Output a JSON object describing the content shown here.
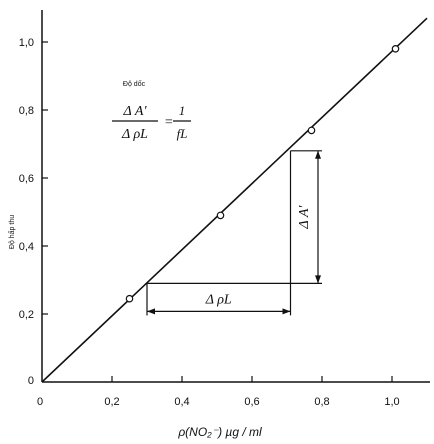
{
  "chart_data": {
    "type": "scatter",
    "xlabel": "ρ(NO₂⁻) µg / ml",
    "ylabel": "Độ hấp thu",
    "xlim": [
      0,
      1.1
    ],
    "ylim": [
      0,
      1.1
    ],
    "x_ticks": [
      "0",
      "0,2",
      "0,4",
      "0,6",
      "0,8",
      "1,0"
    ],
    "y_ticks": [
      "0",
      "0,2",
      "0,4",
      "0,6",
      "0,8",
      "1,0"
    ],
    "grid": false,
    "series": [
      {
        "points": [
          {
            "x": 0.25,
            "y": 0.245
          },
          {
            "x": 0.51,
            "y": 0.49
          },
          {
            "x": 0.77,
            "y": 0.74
          },
          {
            "x": 1.01,
            "y": 0.98
          }
        ],
        "fit_line": {
          "x": [
            0,
            1.1
          ],
          "y": [
            0,
            1.07
          ]
        }
      }
    ],
    "annotation": {
      "title": "Độ dốc",
      "formula_num": "Δ A′",
      "formula_den": "Δ ρL",
      "formula_eq": "=",
      "formula_rhs_num": "1",
      "formula_rhs_den": "fL",
      "delta_x_label": "Δ ρL",
      "delta_y_label": "Δ A′",
      "triangle": {
        "x1": 0.3,
        "y1": 0.29,
        "x2": 0.71,
        "y2": 0.68
      }
    }
  }
}
